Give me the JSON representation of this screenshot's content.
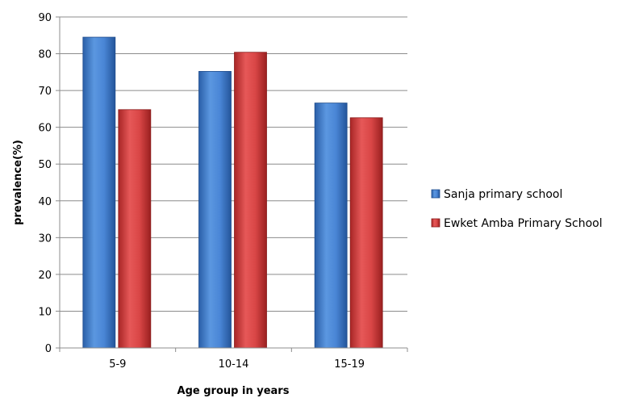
{
  "chart_data": {
    "type": "bar",
    "categories": [
      "5-9",
      "10-14",
      "15-19"
    ],
    "series": [
      {
        "name": "Sanja primary school",
        "values": [
          84.5,
          75.2,
          66.6
        ]
      },
      {
        "name": "Ewket Amba Primary School",
        "values": [
          64.8,
          80.4,
          62.6
        ]
      }
    ],
    "xlabel": "Age group in years",
    "ylabel": "prevalence(%)",
    "ylim": [
      0,
      90
    ],
    "yticks": [
      0,
      10,
      20,
      30,
      40,
      50,
      60,
      70,
      80,
      90
    ],
    "grid": true,
    "legend": "right",
    "colors": [
      "#3a78cc",
      "#cf3b3b"
    ]
  }
}
